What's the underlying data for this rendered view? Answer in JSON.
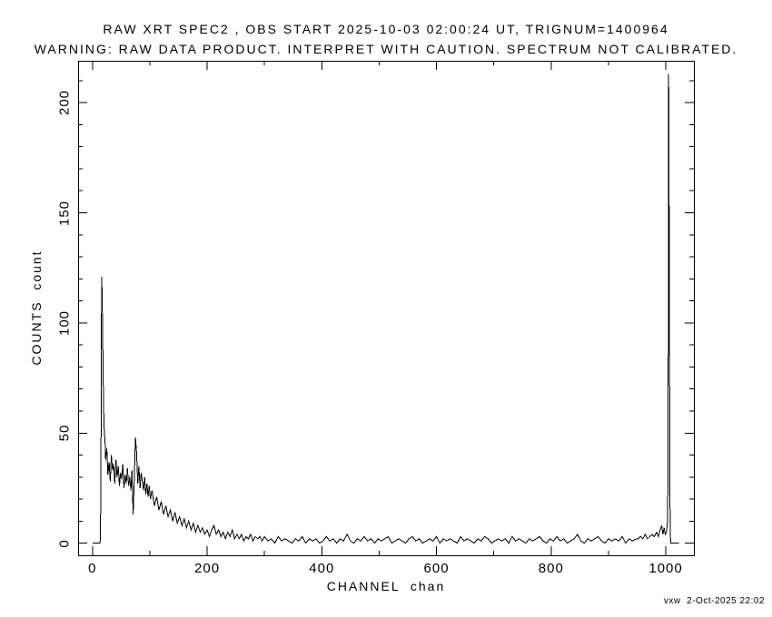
{
  "colors": {
    "background": "#ffffff",
    "foreground": "#000000"
  },
  "footer": {
    "text": "vxw  2-Oct-2025 22:02"
  },
  "chart_data": {
    "type": "line",
    "title": "RAW XRT SPEC2 , OBS START 2025-10-03 02:00:24 UT, TRIGNUM=1400964",
    "subtitle": "WARNING: RAW DATA PRODUCT. INTERPRET WITH CAUTION. SPECTRUM NOT CALIBRATED.",
    "xlabel": "CHANNEL  chan",
    "ylabel": "COUNTS  count",
    "xlim": [
      -25,
      1049
    ],
    "ylim": [
      -5.5,
      219
    ],
    "grid": false,
    "legend": null,
    "x_ticks": {
      "major": [
        0,
        200,
        400,
        600,
        800,
        1000
      ],
      "labels": [
        "0",
        "200",
        "400",
        "600",
        "800",
        "1000"
      ],
      "minor": [
        100,
        300,
        500,
        700,
        900
      ]
    },
    "y_ticks": {
      "major": [
        0,
        50,
        100,
        150,
        200
      ],
      "labels": [
        "0",
        "50",
        "100",
        "150",
        "200"
      ],
      "minor": [
        10,
        20,
        30,
        40,
        60,
        70,
        80,
        90,
        110,
        120,
        130,
        140,
        160,
        170,
        180,
        190,
        210
      ]
    },
    "points": [
      [
        0,
        0
      ],
      [
        13,
        0
      ],
      [
        14,
        2
      ],
      [
        15,
        51
      ],
      [
        16,
        121
      ],
      [
        17,
        113
      ],
      [
        18,
        93
      ],
      [
        19,
        70
      ],
      [
        20,
        55
      ],
      [
        21,
        50
      ],
      [
        22,
        46
      ],
      [
        23,
        38
      ],
      [
        25,
        43
      ],
      [
        27,
        31
      ],
      [
        29,
        37
      ],
      [
        31,
        28
      ],
      [
        33,
        40
      ],
      [
        35,
        33
      ],
      [
        37,
        36
      ],
      [
        39,
        27
      ],
      [
        41,
        38
      ],
      [
        43,
        30
      ],
      [
        45,
        35
      ],
      [
        47,
        26
      ],
      [
        49,
        32
      ],
      [
        51,
        29
      ],
      [
        53,
        36
      ],
      [
        55,
        25
      ],
      [
        57,
        31
      ],
      [
        59,
        27
      ],
      [
        61,
        34
      ],
      [
        63,
        26
      ],
      [
        65,
        30
      ],
      [
        67,
        24
      ],
      [
        69,
        33
      ],
      [
        71,
        13
      ],
      [
        73,
        30
      ],
      [
        75,
        48
      ],
      [
        77,
        41
      ],
      [
        79,
        27
      ],
      [
        81,
        35
      ],
      [
        83,
        25
      ],
      [
        85,
        32
      ],
      [
        87,
        28
      ],
      [
        89,
        24
      ],
      [
        91,
        30
      ],
      [
        93,
        22
      ],
      [
        95,
        27
      ],
      [
        97,
        21
      ],
      [
        99,
        26
      ],
      [
        101,
        20
      ],
      [
        104,
        24
      ],
      [
        108,
        17
      ],
      [
        112,
        21
      ],
      [
        116,
        15
      ],
      [
        120,
        19
      ],
      [
        124,
        13
      ],
      [
        128,
        17
      ],
      [
        132,
        12
      ],
      [
        136,
        15
      ],
      [
        140,
        10
      ],
      [
        144,
        14
      ],
      [
        148,
        9
      ],
      [
        152,
        12
      ],
      [
        156,
        8
      ],
      [
        160,
        11
      ],
      [
        164,
        7
      ],
      [
        168,
        10
      ],
      [
        172,
        6
      ],
      [
        176,
        9
      ],
      [
        180,
        5
      ],
      [
        184,
        8
      ],
      [
        188,
        5
      ],
      [
        192,
        7
      ],
      [
        196,
        4
      ],
      [
        200,
        6
      ],
      [
        204,
        3
      ],
      [
        208,
        6
      ],
      [
        212,
        8
      ],
      [
        216,
        4
      ],
      [
        220,
        6
      ],
      [
        224,
        3
      ],
      [
        228,
        5
      ],
      [
        232,
        2
      ],
      [
        236,
        5
      ],
      [
        240,
        3
      ],
      [
        244,
        6
      ],
      [
        248,
        2
      ],
      [
        252,
        4
      ],
      [
        256,
        2
      ],
      [
        260,
        4
      ],
      [
        264,
        1
      ],
      [
        268,
        3
      ],
      [
        272,
        2
      ],
      [
        276,
        4
      ],
      [
        280,
        1
      ],
      [
        284,
        3
      ],
      [
        288,
        2
      ],
      [
        292,
        3
      ],
      [
        296,
        1
      ],
      [
        300,
        3
      ],
      [
        306,
        1
      ],
      [
        312,
        2
      ],
      [
        318,
        0
      ],
      [
        324,
        3
      ],
      [
        330,
        1
      ],
      [
        336,
        2
      ],
      [
        342,
        1
      ],
      [
        348,
        0
      ],
      [
        354,
        2
      ],
      [
        360,
        1
      ],
      [
        366,
        3
      ],
      [
        372,
        0
      ],
      [
        378,
        2
      ],
      [
        384,
        1
      ],
      [
        390,
        2
      ],
      [
        396,
        0
      ],
      [
        402,
        1
      ],
      [
        408,
        3
      ],
      [
        414,
        1
      ],
      [
        420,
        2
      ],
      [
        426,
        0
      ],
      [
        432,
        2
      ],
      [
        438,
        1
      ],
      [
        444,
        4
      ],
      [
        450,
        1
      ],
      [
        456,
        0
      ],
      [
        462,
        2
      ],
      [
        468,
        1
      ],
      [
        474,
        3
      ],
      [
        480,
        1
      ],
      [
        486,
        2
      ],
      [
        492,
        0
      ],
      [
        498,
        2
      ],
      [
        504,
        1
      ],
      [
        510,
        2
      ],
      [
        516,
        3
      ],
      [
        522,
        0
      ],
      [
        528,
        1
      ],
      [
        534,
        2
      ],
      [
        540,
        1
      ],
      [
        546,
        0
      ],
      [
        552,
        2
      ],
      [
        558,
        3
      ],
      [
        564,
        1
      ],
      [
        570,
        2
      ],
      [
        576,
        0
      ],
      [
        582,
        1
      ],
      [
        588,
        2
      ],
      [
        594,
        1
      ],
      [
        600,
        3
      ],
      [
        606,
        0
      ],
      [
        612,
        2
      ],
      [
        618,
        1
      ],
      [
        624,
        2
      ],
      [
        630,
        1
      ],
      [
        636,
        0
      ],
      [
        642,
        3
      ],
      [
        648,
        1
      ],
      [
        654,
        2
      ],
      [
        660,
        1
      ],
      [
        666,
        0
      ],
      [
        672,
        2
      ],
      [
        678,
        1
      ],
      [
        684,
        3
      ],
      [
        690,
        2
      ],
      [
        696,
        0
      ],
      [
        702,
        1
      ],
      [
        708,
        2
      ],
      [
        714,
        1
      ],
      [
        720,
        2
      ],
      [
        726,
        0
      ],
      [
        732,
        3
      ],
      [
        738,
        1
      ],
      [
        744,
        2
      ],
      [
        750,
        1
      ],
      [
        756,
        0
      ],
      [
        762,
        2
      ],
      [
        768,
        1
      ],
      [
        774,
        2
      ],
      [
        780,
        3
      ],
      [
        786,
        1
      ],
      [
        792,
        0
      ],
      [
        798,
        2
      ],
      [
        804,
        1
      ],
      [
        810,
        3
      ],
      [
        816,
        1
      ],
      [
        822,
        2
      ],
      [
        828,
        0
      ],
      [
        834,
        1
      ],
      [
        840,
        2
      ],
      [
        846,
        4
      ],
      [
        852,
        1
      ],
      [
        858,
        0
      ],
      [
        864,
        2
      ],
      [
        870,
        1
      ],
      [
        876,
        2
      ],
      [
        882,
        3
      ],
      [
        888,
        1
      ],
      [
        894,
        0
      ],
      [
        900,
        2
      ],
      [
        906,
        1
      ],
      [
        912,
        2
      ],
      [
        918,
        1
      ],
      [
        924,
        3
      ],
      [
        930,
        0
      ],
      [
        936,
        2
      ],
      [
        942,
        1
      ],
      [
        948,
        2
      ],
      [
        952,
        2
      ],
      [
        956,
        3
      ],
      [
        960,
        2
      ],
      [
        964,
        4
      ],
      [
        968,
        2
      ],
      [
        972,
        3
      ],
      [
        976,
        4
      ],
      [
        980,
        3
      ],
      [
        984,
        5
      ],
      [
        987,
        3
      ],
      [
        990,
        6
      ],
      [
        993,
        8
      ],
      [
        995,
        4
      ],
      [
        997,
        7
      ],
      [
        999,
        4
      ],
      [
        1001,
        5
      ],
      [
        1003,
        10
      ],
      [
        1004,
        37
      ],
      [
        1005,
        213
      ],
      [
        1006,
        138
      ],
      [
        1007,
        25
      ],
      [
        1008,
        3
      ],
      [
        1009,
        0
      ],
      [
        1023,
        0
      ]
    ]
  }
}
